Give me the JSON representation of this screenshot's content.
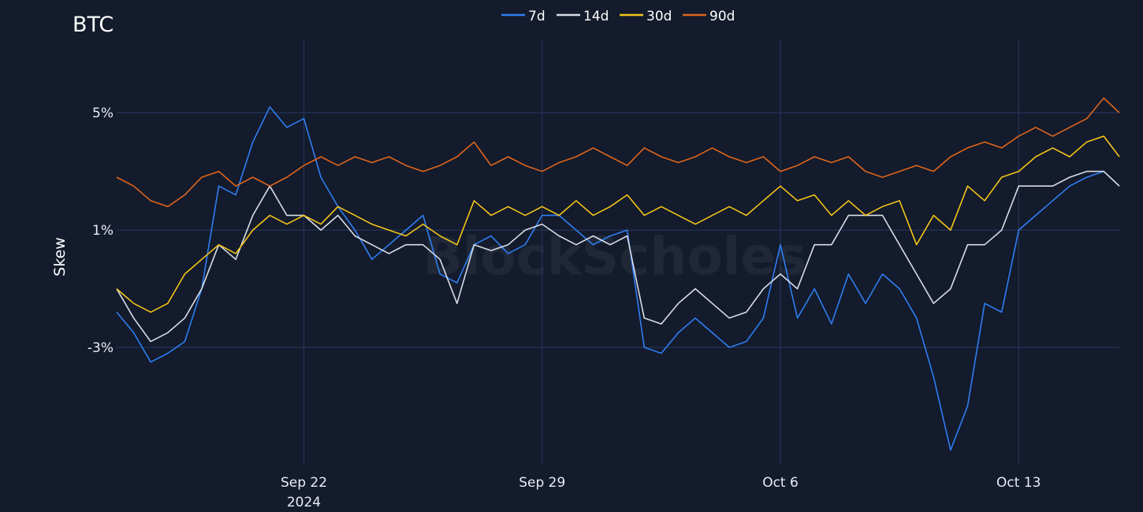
{
  "chart_data": {
    "type": "line",
    "title": "BTC",
    "ylabel": "Skew",
    "xlabel": "",
    "watermark": "BlockScholes",
    "x_range": [
      "2024-09-16T12:00",
      "2024-10-15T23:00"
    ],
    "ylim": [
      -7.0,
      7.5
    ],
    "y_ticks": [
      {
        "value": 5,
        "label": "5%"
      },
      {
        "value": 1,
        "label": "1%"
      },
      {
        "value": -3,
        "label": "-3%"
      }
    ],
    "x_ticks": [
      {
        "value": "2024-09-22",
        "label": "Sep 22",
        "sublabel": "2024"
      },
      {
        "value": "2024-09-29",
        "label": "Sep 29",
        "sublabel": ""
      },
      {
        "value": "2024-10-06",
        "label": "Oct 6",
        "sublabel": ""
      },
      {
        "value": "2024-10-13",
        "label": "Oct 13",
        "sublabel": ""
      }
    ],
    "grid": true,
    "legend_position": "top-center",
    "series": [
      {
        "name": "7d",
        "color": "#2f7ef2",
        "points": [
          [
            "2024-09-16T12:00",
            -1.8
          ],
          [
            "2024-09-17T00:00",
            -2.5
          ],
          [
            "2024-09-17T12:00",
            -3.5
          ],
          [
            "2024-09-18T00:00",
            -3.2
          ],
          [
            "2024-09-18T12:00",
            -2.8
          ],
          [
            "2024-09-19T00:00",
            -1.0
          ],
          [
            "2024-09-19T12:00",
            2.5
          ],
          [
            "2024-09-20T00:00",
            2.2
          ],
          [
            "2024-09-20T12:00",
            4.0
          ],
          [
            "2024-09-21T00:00",
            5.2
          ],
          [
            "2024-09-21T12:00",
            4.5
          ],
          [
            "2024-09-22T00:00",
            4.8
          ],
          [
            "2024-09-22T12:00",
            2.8
          ],
          [
            "2024-09-23T00:00",
            1.8
          ],
          [
            "2024-09-23T12:00",
            1.0
          ],
          [
            "2024-09-24T00:00",
            0.0
          ],
          [
            "2024-09-24T12:00",
            0.5
          ],
          [
            "2024-09-25T00:00",
            1.0
          ],
          [
            "2024-09-25T12:00",
            1.5
          ],
          [
            "2024-09-26T00:00",
            -0.5
          ],
          [
            "2024-09-26T12:00",
            -0.8
          ],
          [
            "2024-09-27T00:00",
            0.5
          ],
          [
            "2024-09-27T12:00",
            0.8
          ],
          [
            "2024-09-28T00:00",
            0.2
          ],
          [
            "2024-09-28T12:00",
            0.5
          ],
          [
            "2024-09-29T00:00",
            1.5
          ],
          [
            "2024-09-29T12:00",
            1.5
          ],
          [
            "2024-09-30T00:00",
            1.0
          ],
          [
            "2024-09-30T12:00",
            0.5
          ],
          [
            "2024-10-01T00:00",
            0.8
          ],
          [
            "2024-10-01T12:00",
            1.0
          ],
          [
            "2024-10-02T00:00",
            -3.0
          ],
          [
            "2024-10-02T12:00",
            -3.2
          ],
          [
            "2024-10-03T00:00",
            -2.5
          ],
          [
            "2024-10-03T12:00",
            -2.0
          ],
          [
            "2024-10-04T00:00",
            -2.5
          ],
          [
            "2024-10-04T12:00",
            -3.0
          ],
          [
            "2024-10-05T00:00",
            -2.8
          ],
          [
            "2024-10-05T12:00",
            -2.0
          ],
          [
            "2024-10-06T00:00",
            0.5
          ],
          [
            "2024-10-06T12:00",
            -2.0
          ],
          [
            "2024-10-07T00:00",
            -1.0
          ],
          [
            "2024-10-07T12:00",
            -2.2
          ],
          [
            "2024-10-08T00:00",
            -0.5
          ],
          [
            "2024-10-08T12:00",
            -1.5
          ],
          [
            "2024-10-09T00:00",
            -0.5
          ],
          [
            "2024-10-09T12:00",
            -1.0
          ],
          [
            "2024-10-10T00:00",
            -2.0
          ],
          [
            "2024-10-10T12:00",
            -4.0
          ],
          [
            "2024-10-11T00:00",
            -6.5
          ],
          [
            "2024-10-11T12:00",
            -5.0
          ],
          [
            "2024-10-12T00:00",
            -1.5
          ],
          [
            "2024-10-12T12:00",
            -1.8
          ],
          [
            "2024-10-13T00:00",
            1.0
          ],
          [
            "2024-10-13T12:00",
            1.5
          ],
          [
            "2024-10-14T00:00",
            2.0
          ],
          [
            "2024-10-14T12:00",
            2.5
          ],
          [
            "2024-10-15T00:00",
            2.8
          ],
          [
            "2024-10-15T12:00",
            3.0
          ],
          [
            "2024-10-15T23:00",
            2.5
          ]
        ]
      },
      {
        "name": "14d",
        "color": "#d9dde5",
        "points": [
          [
            "2024-09-16T12:00",
            -1.0
          ],
          [
            "2024-09-17T00:00",
            -2.0
          ],
          [
            "2024-09-17T12:00",
            -2.8
          ],
          [
            "2024-09-18T00:00",
            -2.5
          ],
          [
            "2024-09-18T12:00",
            -2.0
          ],
          [
            "2024-09-19T00:00",
            -1.0
          ],
          [
            "2024-09-19T12:00",
            0.5
          ],
          [
            "2024-09-20T00:00",
            0.0
          ],
          [
            "2024-09-20T12:00",
            1.5
          ],
          [
            "2024-09-21T00:00",
            2.5
          ],
          [
            "2024-09-21T12:00",
            1.5
          ],
          [
            "2024-09-22T00:00",
            1.5
          ],
          [
            "2024-09-22T12:00",
            1.0
          ],
          [
            "2024-09-23T00:00",
            1.5
          ],
          [
            "2024-09-23T12:00",
            0.8
          ],
          [
            "2024-09-24T00:00",
            0.5
          ],
          [
            "2024-09-24T12:00",
            0.2
          ],
          [
            "2024-09-25T00:00",
            0.5
          ],
          [
            "2024-09-25T12:00",
            0.5
          ],
          [
            "2024-09-26T00:00",
            0.0
          ],
          [
            "2024-09-26T12:00",
            -1.5
          ],
          [
            "2024-09-27T00:00",
            0.5
          ],
          [
            "2024-09-27T12:00",
            0.3
          ],
          [
            "2024-09-28T00:00",
            0.5
          ],
          [
            "2024-09-28T12:00",
            1.0
          ],
          [
            "2024-09-29T00:00",
            1.2
          ],
          [
            "2024-09-29T12:00",
            0.8
          ],
          [
            "2024-09-30T00:00",
            0.5
          ],
          [
            "2024-09-30T12:00",
            0.8
          ],
          [
            "2024-10-01T00:00",
            0.5
          ],
          [
            "2024-10-01T12:00",
            0.8
          ],
          [
            "2024-10-02T00:00",
            -2.0
          ],
          [
            "2024-10-02T12:00",
            -2.2
          ],
          [
            "2024-10-03T00:00",
            -1.5
          ],
          [
            "2024-10-03T12:00",
            -1.0
          ],
          [
            "2024-10-04T00:00",
            -1.5
          ],
          [
            "2024-10-04T12:00",
            -2.0
          ],
          [
            "2024-10-05T00:00",
            -1.8
          ],
          [
            "2024-10-05T12:00",
            -1.0
          ],
          [
            "2024-10-06T00:00",
            -0.5
          ],
          [
            "2024-10-06T12:00",
            -1.0
          ],
          [
            "2024-10-07T00:00",
            0.5
          ],
          [
            "2024-10-07T12:00",
            0.5
          ],
          [
            "2024-10-08T00:00",
            1.5
          ],
          [
            "2024-10-08T12:00",
            1.5
          ],
          [
            "2024-10-09T00:00",
            1.5
          ],
          [
            "2024-10-09T12:00",
            0.5
          ],
          [
            "2024-10-10T00:00",
            -0.5
          ],
          [
            "2024-10-10T12:00",
            -1.5
          ],
          [
            "2024-10-11T00:00",
            -1.0
          ],
          [
            "2024-10-11T12:00",
            0.5
          ],
          [
            "2024-10-12T00:00",
            0.5
          ],
          [
            "2024-10-12T12:00",
            1.0
          ],
          [
            "2024-10-13T00:00",
            2.5
          ],
          [
            "2024-10-13T12:00",
            2.5
          ],
          [
            "2024-10-14T00:00",
            2.5
          ],
          [
            "2024-10-14T12:00",
            2.8
          ],
          [
            "2024-10-15T00:00",
            3.0
          ],
          [
            "2024-10-15T12:00",
            3.0
          ],
          [
            "2024-10-15T23:00",
            2.5
          ]
        ]
      },
      {
        "name": "30d",
        "color": "#f5c518",
        "points": [
          [
            "2024-09-16T12:00",
            -1.0
          ],
          [
            "2024-09-17T00:00",
            -1.5
          ],
          [
            "2024-09-17T12:00",
            -1.8
          ],
          [
            "2024-09-18T00:00",
            -1.5
          ],
          [
            "2024-09-18T12:00",
            -0.5
          ],
          [
            "2024-09-19T00:00",
            0.0
          ],
          [
            "2024-09-19T12:00",
            0.5
          ],
          [
            "2024-09-20T00:00",
            0.2
          ],
          [
            "2024-09-20T12:00",
            1.0
          ],
          [
            "2024-09-21T00:00",
            1.5
          ],
          [
            "2024-09-21T12:00",
            1.2
          ],
          [
            "2024-09-22T00:00",
            1.5
          ],
          [
            "2024-09-22T12:00",
            1.2
          ],
          [
            "2024-09-23T00:00",
            1.8
          ],
          [
            "2024-09-23T12:00",
            1.5
          ],
          [
            "2024-09-24T00:00",
            1.2
          ],
          [
            "2024-09-24T12:00",
            1.0
          ],
          [
            "2024-09-25T00:00",
            0.8
          ],
          [
            "2024-09-25T12:00",
            1.2
          ],
          [
            "2024-09-26T00:00",
            0.8
          ],
          [
            "2024-09-26T12:00",
            0.5
          ],
          [
            "2024-09-27T00:00",
            2.0
          ],
          [
            "2024-09-27T12:00",
            1.5
          ],
          [
            "2024-09-28T00:00",
            1.8
          ],
          [
            "2024-09-28T12:00",
            1.5
          ],
          [
            "2024-09-29T00:00",
            1.8
          ],
          [
            "2024-09-29T12:00",
            1.5
          ],
          [
            "2024-09-30T00:00",
            2.0
          ],
          [
            "2024-09-30T12:00",
            1.5
          ],
          [
            "2024-10-01T00:00",
            1.8
          ],
          [
            "2024-10-01T12:00",
            2.2
          ],
          [
            "2024-10-02T00:00",
            1.5
          ],
          [
            "2024-10-02T12:00",
            1.8
          ],
          [
            "2024-10-03T00:00",
            1.5
          ],
          [
            "2024-10-03T12:00",
            1.2
          ],
          [
            "2024-10-04T00:00",
            1.5
          ],
          [
            "2024-10-04T12:00",
            1.8
          ],
          [
            "2024-10-05T00:00",
            1.5
          ],
          [
            "2024-10-05T12:00",
            2.0
          ],
          [
            "2024-10-06T00:00",
            2.5
          ],
          [
            "2024-10-06T12:00",
            2.0
          ],
          [
            "2024-10-07T00:00",
            2.2
          ],
          [
            "2024-10-07T12:00",
            1.5
          ],
          [
            "2024-10-08T00:00",
            2.0
          ],
          [
            "2024-10-08T12:00",
            1.5
          ],
          [
            "2024-10-09T00:00",
            1.8
          ],
          [
            "2024-10-09T12:00",
            2.0
          ],
          [
            "2024-10-10T00:00",
            0.5
          ],
          [
            "2024-10-10T12:00",
            1.5
          ],
          [
            "2024-10-11T00:00",
            1.0
          ],
          [
            "2024-10-11T12:00",
            2.5
          ],
          [
            "2024-10-12T00:00",
            2.0
          ],
          [
            "2024-10-12T12:00",
            2.8
          ],
          [
            "2024-10-13T00:00",
            3.0
          ],
          [
            "2024-10-13T12:00",
            3.5
          ],
          [
            "2024-10-14T00:00",
            3.8
          ],
          [
            "2024-10-14T12:00",
            3.5
          ],
          [
            "2024-10-15T00:00",
            4.0
          ],
          [
            "2024-10-15T12:00",
            4.2
          ],
          [
            "2024-10-15T23:00",
            3.5
          ]
        ]
      },
      {
        "name": "90d",
        "color": "#e0661b",
        "points": [
          [
            "2024-09-16T12:00",
            2.8
          ],
          [
            "2024-09-17T00:00",
            2.5
          ],
          [
            "2024-09-17T12:00",
            2.0
          ],
          [
            "2024-09-18T00:00",
            1.8
          ],
          [
            "2024-09-18T12:00",
            2.2
          ],
          [
            "2024-09-19T00:00",
            2.8
          ],
          [
            "2024-09-19T12:00",
            3.0
          ],
          [
            "2024-09-20T00:00",
            2.5
          ],
          [
            "2024-09-20T12:00",
            2.8
          ],
          [
            "2024-09-21T00:00",
            2.5
          ],
          [
            "2024-09-21T12:00",
            2.8
          ],
          [
            "2024-09-22T00:00",
            3.2
          ],
          [
            "2024-09-22T12:00",
            3.5
          ],
          [
            "2024-09-23T00:00",
            3.2
          ],
          [
            "2024-09-23T12:00",
            3.5
          ],
          [
            "2024-09-24T00:00",
            3.3
          ],
          [
            "2024-09-24T12:00",
            3.5
          ],
          [
            "2024-09-25T00:00",
            3.2
          ],
          [
            "2024-09-25T12:00",
            3.0
          ],
          [
            "2024-09-26T00:00",
            3.2
          ],
          [
            "2024-09-26T12:00",
            3.5
          ],
          [
            "2024-09-27T00:00",
            4.0
          ],
          [
            "2024-09-27T12:00",
            3.2
          ],
          [
            "2024-09-28T00:00",
            3.5
          ],
          [
            "2024-09-28T12:00",
            3.2
          ],
          [
            "2024-09-29T00:00",
            3.0
          ],
          [
            "2024-09-29T12:00",
            3.3
          ],
          [
            "2024-09-30T00:00",
            3.5
          ],
          [
            "2024-09-30T12:00",
            3.8
          ],
          [
            "2024-10-01T00:00",
            3.5
          ],
          [
            "2024-10-01T12:00",
            3.2
          ],
          [
            "2024-10-02T00:00",
            3.8
          ],
          [
            "2024-10-02T12:00",
            3.5
          ],
          [
            "2024-10-03T00:00",
            3.3
          ],
          [
            "2024-10-03T12:00",
            3.5
          ],
          [
            "2024-10-04T00:00",
            3.8
          ],
          [
            "2024-10-04T12:00",
            3.5
          ],
          [
            "2024-10-05T00:00",
            3.3
          ],
          [
            "2024-10-05T12:00",
            3.5
          ],
          [
            "2024-10-06T00:00",
            3.0
          ],
          [
            "2024-10-06T12:00",
            3.2
          ],
          [
            "2024-10-07T00:00",
            3.5
          ],
          [
            "2024-10-07T12:00",
            3.3
          ],
          [
            "2024-10-08T00:00",
            3.5
          ],
          [
            "2024-10-08T12:00",
            3.0
          ],
          [
            "2024-10-09T00:00",
            2.8
          ],
          [
            "2024-10-09T12:00",
            3.0
          ],
          [
            "2024-10-10T00:00",
            3.2
          ],
          [
            "2024-10-10T12:00",
            3.0
          ],
          [
            "2024-10-11T00:00",
            3.5
          ],
          [
            "2024-10-11T12:00",
            3.8
          ],
          [
            "2024-10-12T00:00",
            4.0
          ],
          [
            "2024-10-12T12:00",
            3.8
          ],
          [
            "2024-10-13T00:00",
            4.2
          ],
          [
            "2024-10-13T12:00",
            4.5
          ],
          [
            "2024-10-14T00:00",
            4.2
          ],
          [
            "2024-10-14T12:00",
            4.5
          ],
          [
            "2024-10-15T00:00",
            4.8
          ],
          [
            "2024-10-15T12:00",
            5.5
          ],
          [
            "2024-10-15T23:00",
            5.0
          ]
        ]
      }
    ]
  }
}
